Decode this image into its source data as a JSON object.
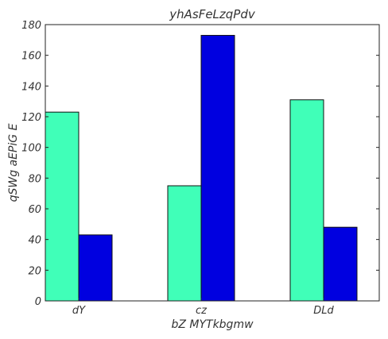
{
  "chart_data": {
    "type": "bar",
    "title": "yhAsFeLzqPdv",
    "xlabel": "bZ MYTkbgmw",
    "ylabel": "qSWg aEPiG E",
    "categories": [
      "dY",
      "cz",
      "DLd"
    ],
    "series": [
      {
        "values": [
          123,
          75,
          131
        ],
        "color": "#40ffb8"
      },
      {
        "values": [
          43,
          173,
          48
        ],
        "color": "#0000e0"
      }
    ],
    "ylim": [
      0,
      180
    ],
    "yticks": [
      0,
      20,
      40,
      60,
      80,
      100,
      120,
      140,
      160,
      180
    ],
    "grid": false
  }
}
